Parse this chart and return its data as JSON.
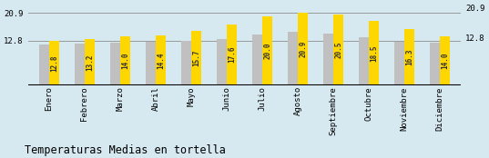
{
  "months": [
    "Enero",
    "Febrero",
    "Marzo",
    "Abril",
    "Mayo",
    "Junio",
    "Julio",
    "Agosto",
    "Septiembre",
    "Octubre",
    "Noviembre",
    "Diciembre"
  ],
  "values": [
    12.8,
    13.2,
    14.0,
    14.4,
    15.7,
    17.6,
    20.0,
    20.9,
    20.5,
    18.5,
    16.3,
    14.0
  ],
  "gray_values": [
    11.8,
    12.0,
    12.3,
    12.5,
    12.8,
    13.2,
    14.5,
    15.5,
    15.0,
    13.8,
    12.5,
    12.3
  ],
  "bar_color_yellow": "#FFD700",
  "bar_color_gray": "#C0C0C0",
  "background_color": "#D6E8F0",
  "title": "Temperaturas Medias en tortella",
  "ylim_min": 0,
  "ylim_max": 23.5,
  "yticks": [
    12.8,
    20.9
  ],
  "hline_y1": 20.9,
  "hline_y2": 12.8,
  "title_fontsize": 8.5,
  "value_fontsize": 5.5,
  "tick_fontsize": 6.5
}
